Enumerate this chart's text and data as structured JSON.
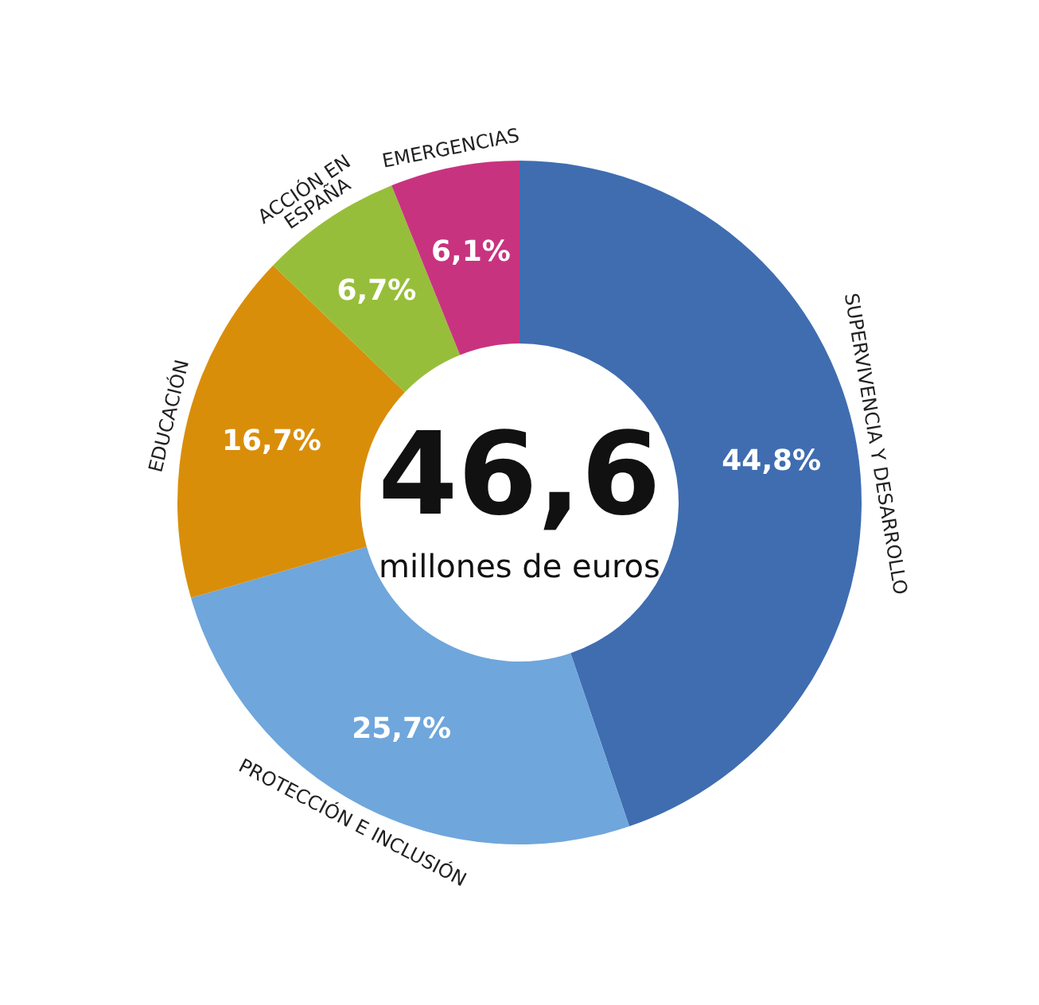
{
  "chart_data": {
    "type": "donut",
    "categories": [
      "SUPERVIVENCIA Y DESARROLLO",
      "PROTECCIÓN E INCLUSIÓN",
      "EDUCACIÓN",
      "ACCIÓN EN ESPAÑA",
      "EMERGENCIAS"
    ],
    "values": [
      44.8,
      25.7,
      16.7,
      6.7,
      6.1
    ],
    "colors": [
      "#3f6db0",
      "#6fa6dc",
      "#d98e0a",
      "#97be3a",
      "#c8337f"
    ],
    "value_labels": [
      "44,8%",
      "25,7%",
      "16,7%",
      "6,7%",
      "6,1%"
    ],
    "annotations": [
      "46,6",
      "millones de euros"
    ]
  }
}
